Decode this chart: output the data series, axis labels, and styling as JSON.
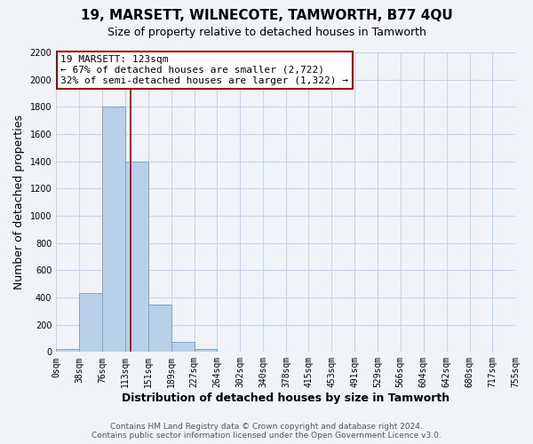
{
  "title": "19, MARSETT, WILNECOTE, TAMWORTH, B77 4QU",
  "subtitle": "Size of property relative to detached houses in Tamworth",
  "xlabel": "Distribution of detached houses by size in Tamworth",
  "ylabel": "Number of detached properties",
  "bar_values": [
    20,
    430,
    1800,
    1400,
    350,
    75,
    25,
    5,
    0,
    0,
    0,
    0,
    0,
    0,
    0,
    0,
    0,
    0,
    0
  ],
  "bin_edges": [
    0,
    38,
    76,
    113,
    151,
    189,
    227,
    264,
    302,
    340,
    378,
    415,
    453,
    491,
    529,
    566,
    604,
    642,
    680,
    717,
    755
  ],
  "tick_labels": [
    "0sqm",
    "38sqm",
    "76sqm",
    "113sqm",
    "151sqm",
    "189sqm",
    "227sqm",
    "264sqm",
    "302sqm",
    "340sqm",
    "378sqm",
    "415sqm",
    "453sqm",
    "491sqm",
    "529sqm",
    "566sqm",
    "604sqm",
    "642sqm",
    "680sqm",
    "717sqm",
    "755sqm"
  ],
  "bar_color": "#b8d0e8",
  "bar_edge_color": "#6aaad4",
  "grid_color": "#c8d4e8",
  "vline_x": 123,
  "vline_color": "#aa0000",
  "annotation_box_text": "19 MARSETT: 123sqm\n← 67% of detached houses are smaller (2,722)\n32% of semi-detached houses are larger (1,322) →",
  "annotation_box_color": "#ffffff",
  "annotation_box_edge_color": "#aa0000",
  "ylim": [
    0,
    2200
  ],
  "yticks": [
    0,
    200,
    400,
    600,
    800,
    1000,
    1200,
    1400,
    1600,
    1800,
    2000,
    2200
  ],
  "footer_line1": "Contains HM Land Registry data © Crown copyright and database right 2024.",
  "footer_line2": "Contains public sector information licensed under the Open Government Licence v3.0.",
  "background_color": "#f0f4f8",
  "plot_bg_color": "#f0f4f8",
  "title_fontsize": 11,
  "subtitle_fontsize": 9,
  "xlabel_fontsize": 9,
  "ylabel_fontsize": 9,
  "tick_fontsize": 7,
  "annotation_fontsize": 8,
  "footer_fontsize": 6.5
}
